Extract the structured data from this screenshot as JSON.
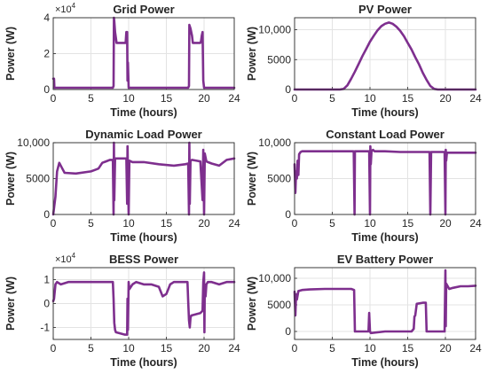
{
  "colors": {
    "series": "#7e2f8e",
    "grid": "#e3e3e3",
    "axis": "#262626",
    "text": "#262626"
  },
  "chart_data": [
    {
      "type": "line",
      "title": "Grid Power",
      "xlabel": "Time (hours)",
      "ylabel": "Power (W)",
      "exponent": "×10",
      "exponent_power": "4",
      "xlim": [
        0,
        24
      ],
      "ylim": [
        0,
        4
      ],
      "xticks": [
        "0",
        "5",
        "10",
        "15",
        "20",
        "24"
      ],
      "yticks": [
        {
          "v": 0,
          "label": "0"
        },
        {
          "v": 2,
          "label": "2"
        },
        {
          "v": 4,
          "label": "4"
        }
      ],
      "grid": true,
      "series": [
        {
          "x": [
            0,
            0.1,
            0.15,
            0.2,
            7.9,
            8.0,
            8.05,
            8.1,
            8.2,
            8.4,
            8.5,
            9.6,
            9.7,
            9.8,
            9.85,
            9.9,
            10.0,
            10.2,
            17.9,
            18.0,
            18.05,
            18.2,
            18.4,
            18.5,
            19.5,
            19.6,
            19.7,
            19.8,
            19.9,
            20.0,
            24
          ],
          "y": [
            0.6,
            0.6,
            0.1,
            0.1,
            0.1,
            0.2,
            4.0,
            3.8,
            3.2,
            2.6,
            2.6,
            2.6,
            3.2,
            3.2,
            0.5,
            1.5,
            0.1,
            0.1,
            0.1,
            0.2,
            3.6,
            3.4,
            3.0,
            2.6,
            2.6,
            2.7,
            3.0,
            3.2,
            0.5,
            0.1,
            0.1
          ]
        }
      ]
    },
    {
      "type": "line",
      "title": "PV Power",
      "xlabel": "Time (hours)",
      "ylabel": "Power (W)",
      "xlim": [
        0,
        24
      ],
      "ylim": [
        0,
        12000
      ],
      "xticks": [
        "0",
        "5",
        "10",
        "15",
        "20",
        "24"
      ],
      "yticks": [
        {
          "v": 0,
          "label": "0"
        },
        {
          "v": 5000,
          "label": "5000"
        },
        {
          "v": 10000,
          "label": "10,000"
        }
      ],
      "grid": true,
      "series": [
        {
          "x": [
            0,
            6,
            6.5,
            7,
            7.5,
            8,
            8.5,
            9,
            9.5,
            10,
            10.5,
            11,
            11.5,
            12,
            12.5,
            13,
            13.5,
            14,
            14.5,
            15,
            15.5,
            16,
            16.5,
            17,
            17.5,
            18,
            18.5,
            19,
            24
          ],
          "y": [
            0,
            0,
            100,
            700,
            1800,
            3000,
            4300,
            5600,
            6800,
            8000,
            9000,
            9900,
            10600,
            11000,
            11200,
            11000,
            10500,
            9800,
            8900,
            7800,
            6700,
            5400,
            4200,
            2800,
            1600,
            600,
            100,
            0,
            0
          ]
        }
      ]
    },
    {
      "type": "line",
      "title": "Dynamic Load Power",
      "xlabel": "Time (hours)",
      "ylabel": "Power (W)",
      "xlim": [
        0,
        24
      ],
      "ylim": [
        0,
        10000
      ],
      "xticks": [
        "0",
        "5",
        "10",
        "15",
        "20",
        "24"
      ],
      "yticks": [
        {
          "v": 0,
          "label": "0"
        },
        {
          "v": 5000,
          "label": "5000"
        },
        {
          "v": 10000,
          "label": "10,000"
        }
      ],
      "grid": true,
      "series": [
        {
          "x": [
            0,
            0.3,
            0.5,
            0.8,
            1.2,
            1.5,
            3,
            5,
            5.5,
            6,
            6.5,
            7,
            7.5,
            7.9,
            8.0,
            8.05,
            8.1,
            8.2,
            8.4,
            9,
            9.7,
            9.8,
            9.85,
            10.0,
            10.1,
            10.5,
            12,
            14,
            16,
            17.5,
            17.9,
            18.0,
            18.05,
            18.1,
            18.2,
            18.4,
            19.5,
            19.8,
            19.9,
            20.0,
            20.1,
            20.3,
            20.5,
            21,
            22,
            23,
            24
          ],
          "y": [
            0,
            2500,
            6000,
            7200,
            6400,
            5800,
            5700,
            6000,
            6200,
            6400,
            7200,
            7400,
            7600,
            7600,
            0,
            10000,
            2000,
            7800,
            7800,
            7800,
            7800,
            1500,
            9500,
            0,
            7500,
            7300,
            7300,
            7000,
            6800,
            7000,
            7100,
            0,
            10000,
            1500,
            7500,
            7600,
            7400,
            2000,
            9000,
            0,
            8500,
            7400,
            7300,
            7100,
            6800,
            7600,
            7800
          ]
        }
      ]
    },
    {
      "type": "line",
      "title": "Constant Load Power",
      "xlabel": "Time (hours)",
      "ylabel": "Power (W)",
      "xlim": [
        0,
        24
      ],
      "ylim": [
        0,
        10000
      ],
      "xticks": [
        "0",
        "5",
        "10",
        "15",
        "20",
        "24"
      ],
      "yticks": [
        {
          "v": 0,
          "label": "0"
        },
        {
          "v": 5000,
          "label": "5000"
        },
        {
          "v": 10000,
          "label": "10,000"
        }
      ],
      "grid": true,
      "series": [
        {
          "x": [
            0,
            0.1,
            0.2,
            0.3,
            0.4,
            0.5,
            0.6,
            0.8,
            1,
            2,
            4,
            6,
            7.8,
            7.85,
            7.95,
            8.0,
            8.1,
            8.2,
            9.9,
            10.0,
            10.05,
            10.1,
            10.2,
            10.4,
            10.6,
            12,
            14,
            16,
            17.9,
            18.0,
            18.1,
            18.2,
            19.9,
            20.0,
            20.05,
            20.1,
            20.2,
            21,
            24
          ],
          "y": [
            7000,
            3000,
            6000,
            5000,
            7500,
            5500,
            8400,
            8700,
            8800,
            8800,
            8800,
            8800,
            8800,
            8600,
            0,
            8800,
            8800,
            8800,
            8800,
            0,
            9500,
            7000,
            8800,
            9000,
            8800,
            8800,
            8700,
            8700,
            8700,
            0,
            8700,
            8700,
            8700,
            0,
            9000,
            7500,
            8600,
            8600,
            8600
          ]
        }
      ]
    },
    {
      "type": "line",
      "title": "BESS Power",
      "xlabel": "Time (hours)",
      "ylabel": "Power (W)",
      "exponent": "×10",
      "exponent_power": "4",
      "xlim": [
        0,
        24
      ],
      "ylim": [
        -1.5,
        1.5
      ],
      "xticks": [
        "0",
        "5",
        "10",
        "15",
        "20",
        "24"
      ],
      "yticks": [
        {
          "v": -1,
          "label": "-1"
        },
        {
          "v": 0,
          "label": "0"
        },
        {
          "v": 1,
          "label": "1"
        }
      ],
      "grid": true,
      "series": [
        {
          "x": [
            0,
            0.1,
            0.3,
            0.5,
            1,
            2,
            4,
            6,
            7.5,
            7.9,
            8.0,
            8.1,
            8.2,
            8.3,
            9.5,
            9.8,
            9.85,
            9.9,
            10.0,
            10.1,
            10.5,
            11,
            12,
            13,
            14,
            14.5,
            15,
            15.5,
            16,
            17,
            17.8,
            17.9,
            18.0,
            18.1,
            18.2,
            18.3,
            19.5,
            19.8,
            19.9,
            20.0,
            20.05,
            20.1,
            20.2,
            20.3,
            20.5,
            21,
            22,
            23,
            24
          ],
          "y": [
            0.1,
            0.2,
            0.8,
            0.9,
            0.8,
            0.9,
            0.9,
            0.9,
            0.9,
            0.9,
            0.2,
            -0.8,
            -1.1,
            -1.2,
            -1.3,
            -1.3,
            0.2,
            -1.1,
            0.9,
            0.6,
            0.8,
            0.9,
            0.8,
            0.8,
            0.7,
            0.3,
            0.4,
            0.8,
            0.9,
            0.9,
            0.9,
            0.1,
            -0.7,
            -1.0,
            -0.6,
            -0.5,
            -0.4,
            -0.3,
            0.9,
            1.3,
            -1.2,
            0.8,
            0.3,
            0.8,
            0.9,
            0.9,
            0.8,
            0.9,
            0.9
          ]
        }
      ]
    },
    {
      "type": "line",
      "title": "EV Battery Power",
      "xlabel": "Time (hours)",
      "ylabel": "Power (W)",
      "xlim": [
        0,
        24
      ],
      "ylim": [
        -1500,
        12000
      ],
      "xticks": [
        "0",
        "5",
        "10",
        "15",
        "20",
        "24"
      ],
      "yticks": [
        {
          "v": 0,
          "label": "0"
        },
        {
          "v": 5000,
          "label": "5000"
        },
        {
          "v": 10000,
          "label": "10,000"
        }
      ],
      "grid": true,
      "series": [
        {
          "x": [
            0,
            0.1,
            0.2,
            0.3,
            0.5,
            1,
            2,
            4,
            6,
            7.5,
            7.9,
            8.0,
            8.1,
            9.8,
            9.9,
            10.0,
            10.1,
            12,
            14,
            15.5,
            15.8,
            15.9,
            16.0,
            16.2,
            17,
            17.4,
            17.5,
            17.6,
            19.9,
            20.0,
            20.05,
            20.1,
            20.3,
            20.5,
            21,
            22,
            23,
            24
          ],
          "y": [
            7500,
            3000,
            7000,
            6000,
            7600,
            7800,
            7900,
            8000,
            8000,
            8000,
            7800,
            0,
            0,
            0,
            3500,
            0,
            -300,
            0,
            0,
            0,
            500,
            2800,
            3000,
            5200,
            5400,
            5400,
            0,
            0,
            0,
            11500,
            1000,
            9000,
            8500,
            8000,
            8200,
            8500,
            8500,
            8600
          ]
        }
      ]
    }
  ]
}
